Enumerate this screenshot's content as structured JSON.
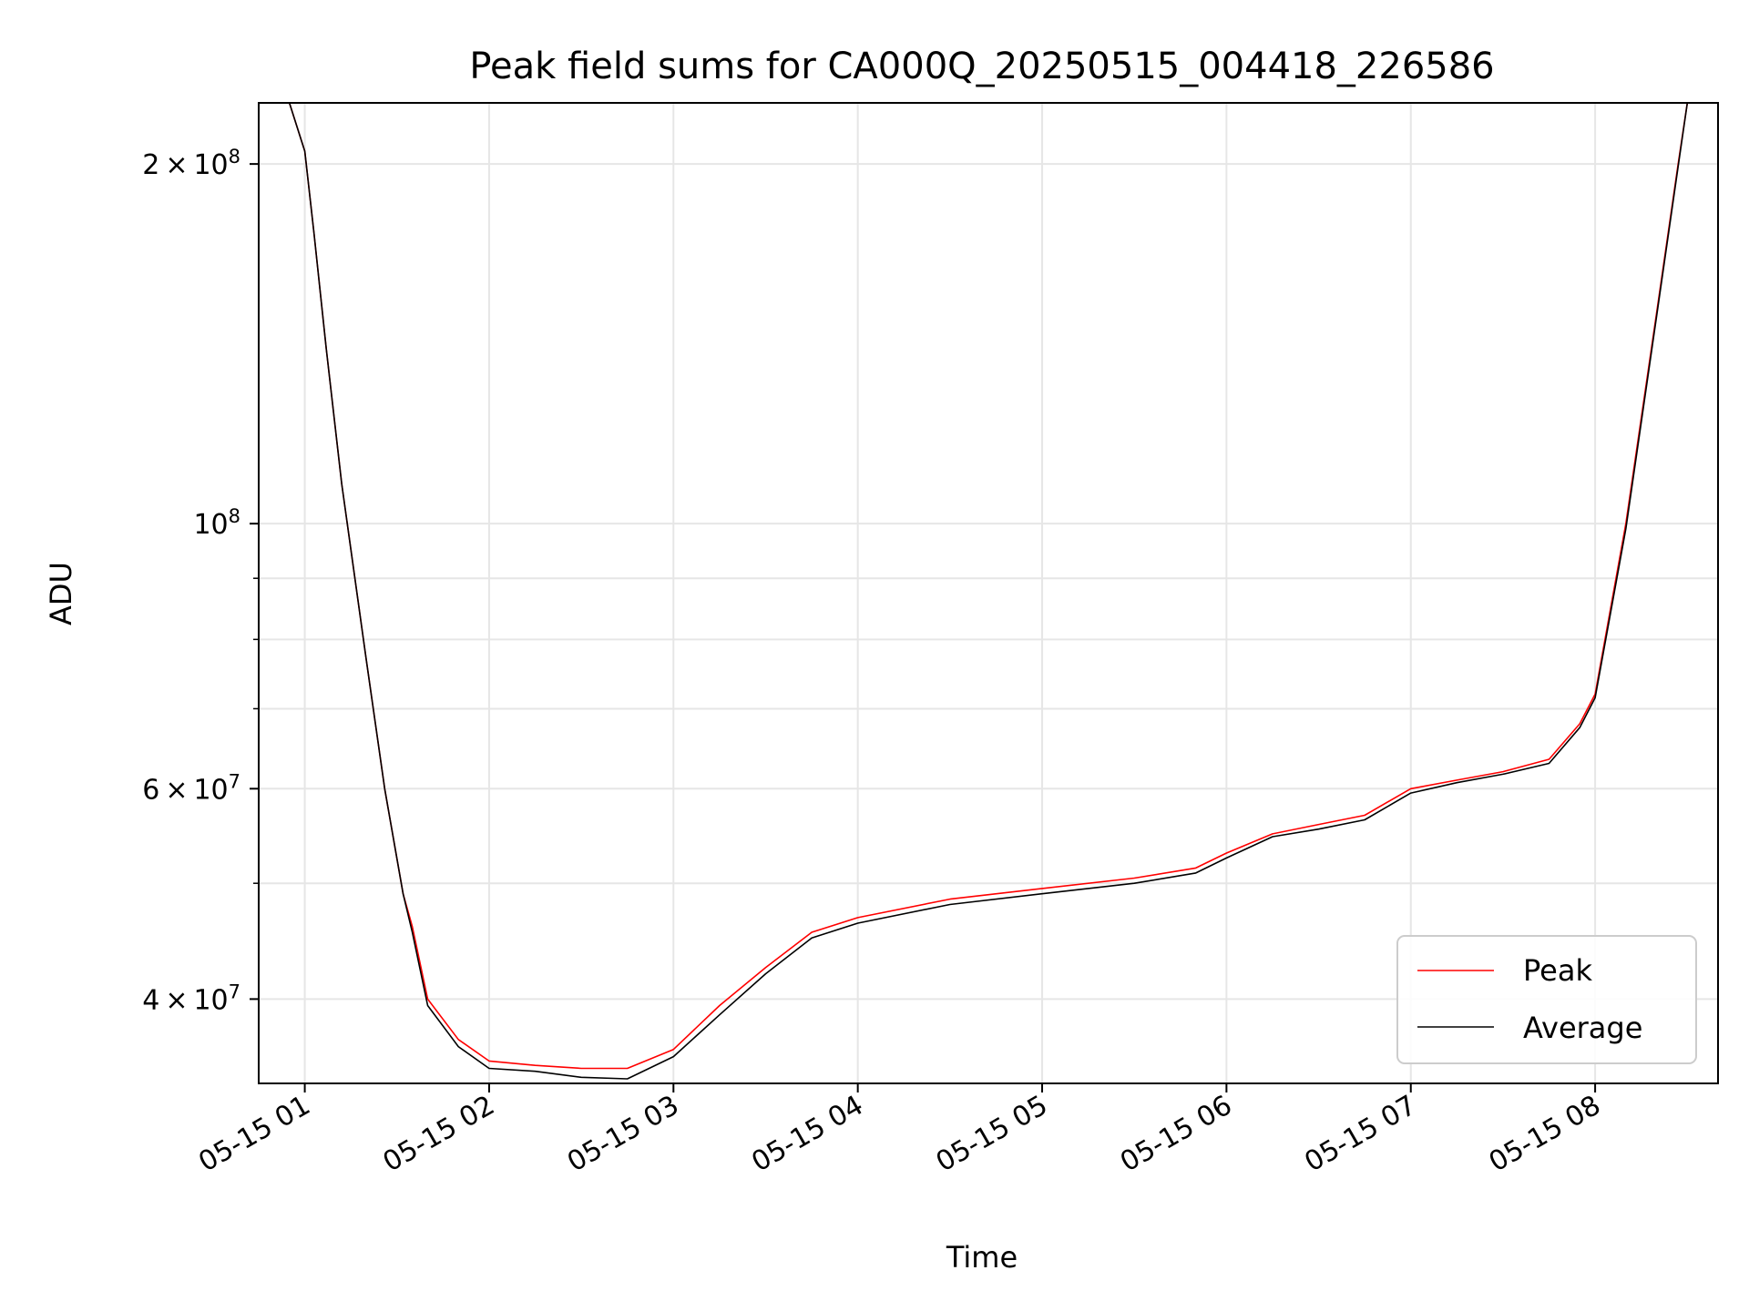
{
  "chart_data": {
    "type": "line",
    "title": "Peak field sums for CA000Q_20250515_004418_226586",
    "xlabel": "Time",
    "ylabel": "ADU",
    "yscale": "log",
    "grid": true,
    "legend_position": "lower-right",
    "xlim": [
      "2025-05-15 00:45",
      "2025-05-15 08:40"
    ],
    "ylim": [
      34000000,
      225000000
    ],
    "x_ticks": [
      "2025-05-15 01:00",
      "2025-05-15 02:00",
      "2025-05-15 03:00",
      "2025-05-15 04:00",
      "2025-05-15 05:00",
      "2025-05-15 06:00",
      "2025-05-15 07:00",
      "2025-05-15 08:00"
    ],
    "x_tick_labels": [
      "05-15 01",
      "05-15 02",
      "05-15 03",
      "05-15 04",
      "05-15 05",
      "05-15 06",
      "05-15 07",
      "05-15 08"
    ],
    "y_ticks_major": [
      {
        "value": 200000000,
        "mant": "2",
        "exp": "8"
      },
      {
        "value": 100000000,
        "mant": "",
        "exp": "8"
      },
      {
        "value": 60000000,
        "mant": "6",
        "exp": "7"
      },
      {
        "value": 40000000,
        "mant": "4",
        "exp": "7"
      }
    ],
    "y_ticks_minor": [
      90000000,
      80000000,
      70000000,
      50000000
    ],
    "x": [
      "2025-05-15 00:55",
      "2025-05-15 01:00",
      "2025-05-15 01:03",
      "2025-05-15 01:07",
      "2025-05-15 01:12",
      "2025-05-15 01:20",
      "2025-05-15 01:26",
      "2025-05-15 01:32",
      "2025-05-15 01:35",
      "2025-05-15 01:40",
      "2025-05-15 01:50",
      "2025-05-15 02:00",
      "2025-05-15 02:15",
      "2025-05-15 02:30",
      "2025-05-15 02:45",
      "2025-05-15 03:00",
      "2025-05-15 03:15",
      "2025-05-15 03:30",
      "2025-05-15 03:45",
      "2025-05-15 04:00",
      "2025-05-15 04:30",
      "2025-05-15 05:00",
      "2025-05-15 05:30",
      "2025-05-15 05:50",
      "2025-05-15 06:00",
      "2025-05-15 06:15",
      "2025-05-15 06:30",
      "2025-05-15 06:45",
      "2025-05-15 07:00",
      "2025-05-15 07:15",
      "2025-05-15 07:30",
      "2025-05-15 07:45",
      "2025-05-15 07:55",
      "2025-05-15 08:00",
      "2025-05-15 08:10",
      "2025-05-15 08:20",
      "2025-05-15 08:27",
      "2025-05-15 08:30"
    ],
    "series": [
      {
        "name": "Peak",
        "color": "#ff0000",
        "values": [
          225000000,
          205000000,
          175000000,
          140000000,
          108000000,
          77000000,
          60000000,
          49000000,
          46000000,
          40000000,
          37000000,
          35500000,
          35200000,
          35000000,
          35000000,
          36300000,
          39500000,
          42500000,
          45500000,
          46800000,
          48500000,
          49500000,
          50500000,
          51500000,
          53000000,
          55000000,
          56000000,
          57000000,
          60000000,
          61000000,
          62000000,
          63500000,
          68000000,
          72000000,
          100000000,
          150000000,
          200000000,
          225000000
        ]
      },
      {
        "name": "Average",
        "color": "#000000",
        "values": [
          225000000,
          205000000,
          175000000,
          140000000,
          108000000,
          77000000,
          60000000,
          49000000,
          45500000,
          39500000,
          36500000,
          35000000,
          34800000,
          34400000,
          34300000,
          35800000,
          38800000,
          42000000,
          45000000,
          46300000,
          48000000,
          49000000,
          50000000,
          51000000,
          52500000,
          54700000,
          55500000,
          56500000,
          59500000,
          60700000,
          61700000,
          63000000,
          67500000,
          71500000,
          99000000,
          149000000,
          199000000,
          225000000
        ]
      }
    ]
  }
}
